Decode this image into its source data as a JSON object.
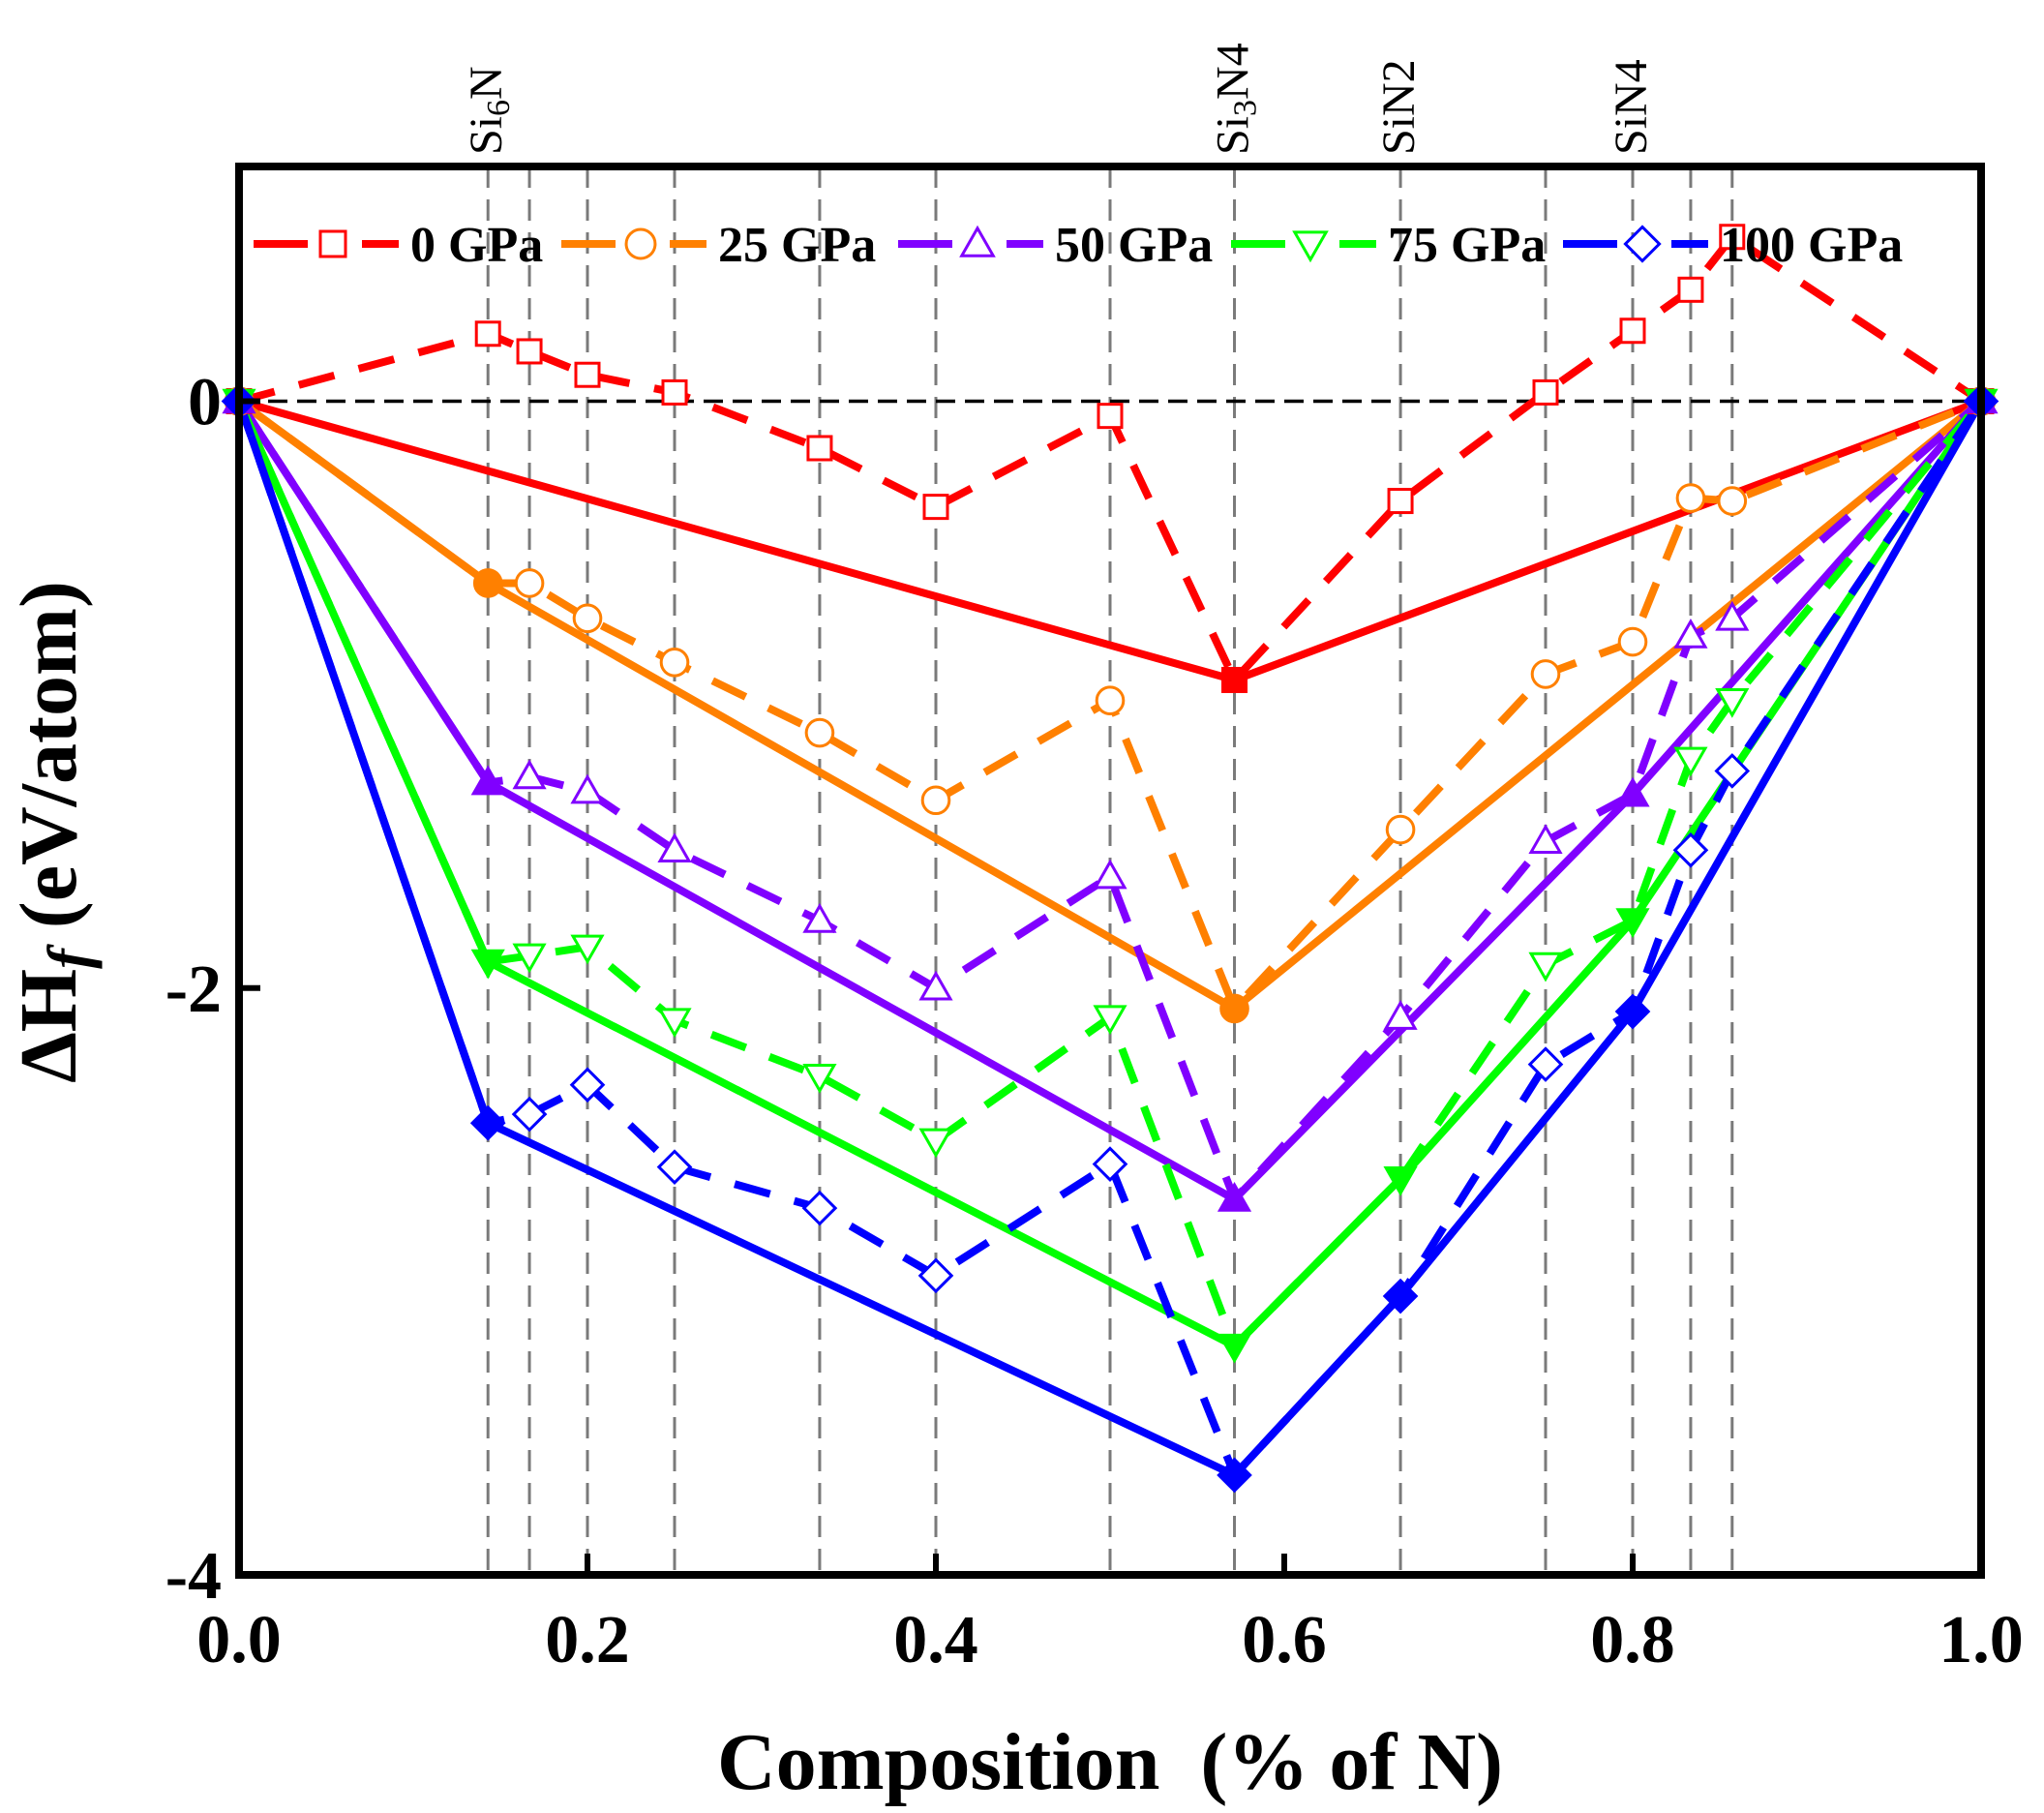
{
  "chart_data": {
    "type": "line",
    "xlabel": "Composition  (% of N)",
    "ylabel_main": "ΔH",
    "ylabel_sub": "f",
    "ylabel_units": " (eV/atom)",
    "xlim": [
      0,
      1
    ],
    "ylim": [
      -4,
      0.8
    ],
    "x_ticks": [
      0,
      0.2,
      0.4,
      0.6,
      0.8,
      1.0
    ],
    "x_tick_labels": [
      "0.0",
      "0.2",
      "0.4",
      "0.6",
      "0.8",
      "1.0"
    ],
    "y_ticks": [
      0,
      -2,
      -4
    ],
    "y_tick_labels": [
      "0",
      "-2",
      "-4"
    ],
    "guide_lines_x": [
      0.1429,
      0.1667,
      0.2,
      0.25,
      0.3333,
      0.4,
      0.5,
      0.5714,
      0.6667,
      0.75,
      0.8,
      0.8333,
      0.8571
    ],
    "zero_line": true,
    "annotations": [
      {
        "x": 0.1429,
        "base": "Si",
        "sub": "6",
        "tail": "N"
      },
      {
        "x": 0.5714,
        "base": "Si",
        "sub": "3",
        "tail": "N4"
      },
      {
        "x": 0.6667,
        "base": "SiN2",
        "sub": "",
        "tail": ""
      },
      {
        "x": 0.8,
        "base": "SiN4",
        "sub": "",
        "tail": ""
      }
    ],
    "legend_position": "top",
    "series": [
      {
        "name": "0 GPa",
        "color": "#ff0000",
        "marker": "square",
        "points": [
          [
            0,
            0
          ],
          [
            0.1429,
            0.23
          ],
          [
            0.1667,
            0.17
          ],
          [
            0.2,
            0.09
          ],
          [
            0.25,
            0.03
          ],
          [
            0.3333,
            -0.16
          ],
          [
            0.4,
            -0.36
          ],
          [
            0.5,
            -0.05
          ],
          [
            0.5714,
            -0.95
          ],
          [
            0.6667,
            -0.34
          ],
          [
            0.75,
            0.03
          ],
          [
            0.8,
            0.24
          ],
          [
            0.8333,
            0.38
          ],
          [
            0.8571,
            0.56
          ],
          [
            1,
            0
          ]
        ],
        "hull": [
          [
            0,
            0
          ],
          [
            0.5714,
            -0.95
          ],
          [
            1,
            0
          ]
        ]
      },
      {
        "name": "25 GPa",
        "color": "#ff8000",
        "marker": "circle",
        "points": [
          [
            0,
            0
          ],
          [
            0.1429,
            -0.62
          ],
          [
            0.1667,
            -0.62
          ],
          [
            0.2,
            -0.74
          ],
          [
            0.25,
            -0.89
          ],
          [
            0.3333,
            -1.13
          ],
          [
            0.4,
            -1.36
          ],
          [
            0.5,
            -1.02
          ],
          [
            0.5714,
            -2.07
          ],
          [
            0.6667,
            -1.46
          ],
          [
            0.75,
            -0.93
          ],
          [
            0.8,
            -0.82
          ],
          [
            0.8333,
            -0.33
          ],
          [
            0.8571,
            -0.34
          ],
          [
            1,
            0
          ]
        ],
        "hull": [
          [
            0,
            0
          ],
          [
            0.1429,
            -0.62
          ],
          [
            0.5714,
            -2.07
          ],
          [
            1,
            0
          ]
        ]
      },
      {
        "name": "50 GPa",
        "color": "#8000ff",
        "marker": "triangle-up",
        "points": [
          [
            0,
            0
          ],
          [
            0.1429,
            -1.3
          ],
          [
            0.1667,
            -1.28
          ],
          [
            0.2,
            -1.33
          ],
          [
            0.25,
            -1.53
          ],
          [
            0.3333,
            -1.77
          ],
          [
            0.4,
            -2.0
          ],
          [
            0.5,
            -1.62
          ],
          [
            0.5714,
            -2.72
          ],
          [
            0.6667,
            -2.1
          ],
          [
            0.75,
            -1.5
          ],
          [
            0.8,
            -1.34
          ],
          [
            0.8333,
            -0.8
          ],
          [
            0.8571,
            -0.74
          ],
          [
            1,
            0
          ]
        ],
        "hull": [
          [
            0,
            0
          ],
          [
            0.1429,
            -1.3
          ],
          [
            0.5714,
            -2.72
          ],
          [
            0.8,
            -1.34
          ],
          [
            1,
            0
          ]
        ]
      },
      {
        "name": "75 GPa",
        "color": "#00ff00",
        "marker": "triangle-down",
        "points": [
          [
            0,
            0
          ],
          [
            0.1429,
            -1.91
          ],
          [
            0.1667,
            -1.89
          ],
          [
            0.2,
            -1.86
          ],
          [
            0.25,
            -2.11
          ],
          [
            0.3333,
            -2.3
          ],
          [
            0.4,
            -2.52
          ],
          [
            0.5,
            -2.1
          ],
          [
            0.5714,
            -3.22
          ],
          [
            0.6667,
            -2.65
          ],
          [
            0.75,
            -1.92
          ],
          [
            0.8,
            -1.77
          ],
          [
            0.8333,
            -1.22
          ],
          [
            0.8571,
            -1.02
          ],
          [
            1,
            0
          ]
        ],
        "hull": [
          [
            0,
            0
          ],
          [
            0.1429,
            -1.91
          ],
          [
            0.5714,
            -3.22
          ],
          [
            0.6667,
            -2.65
          ],
          [
            0.8,
            -1.77
          ],
          [
            1,
            0
          ]
        ]
      },
      {
        "name": "100 GPa",
        "color": "#0000ff",
        "marker": "diamond",
        "points": [
          [
            0,
            0
          ],
          [
            0.1429,
            -2.46
          ],
          [
            0.1667,
            -2.43
          ],
          [
            0.2,
            -2.33
          ],
          [
            0.25,
            -2.61
          ],
          [
            0.3333,
            -2.75
          ],
          [
            0.4,
            -2.98
          ],
          [
            0.5,
            -2.6
          ],
          [
            0.5714,
            -3.66
          ],
          [
            0.6667,
            -3.05
          ],
          [
            0.75,
            -2.26
          ],
          [
            0.8,
            -2.08
          ],
          [
            0.8333,
            -1.53
          ],
          [
            0.8571,
            -1.26
          ],
          [
            1,
            0
          ]
        ],
        "hull": [
          [
            0,
            0
          ],
          [
            0.1429,
            -2.46
          ],
          [
            0.5714,
            -3.66
          ],
          [
            0.6667,
            -3.05
          ],
          [
            0.8,
            -2.08
          ],
          [
            1,
            0
          ]
        ]
      }
    ]
  }
}
